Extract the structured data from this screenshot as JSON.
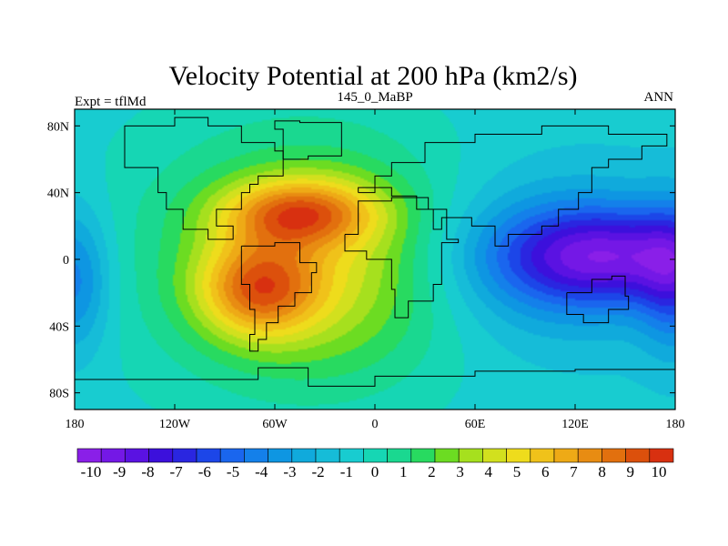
{
  "chart_data": {
    "type": "heatmap",
    "title": "Velocity Potential at 200 hPa (km2/s)",
    "left_label": "Expt = tflMd",
    "center_label": "145_0_MaBP",
    "right_label": "ANN",
    "xlim": [
      -180,
      180
    ],
    "ylim": [
      -90,
      90
    ],
    "x_ticks": [
      {
        "value": -180,
        "label": "180"
      },
      {
        "value": -120,
        "label": "120W"
      },
      {
        "value": -60,
        "label": "60W"
      },
      {
        "value": 0,
        "label": "0"
      },
      {
        "value": 60,
        "label": "60E"
      },
      {
        "value": 120,
        "label": "120E"
      },
      {
        "value": 180,
        "label": "180"
      }
    ],
    "y_ticks": [
      {
        "value": 80,
        "label": "80N"
      },
      {
        "value": 40,
        "label": "40N"
      },
      {
        "value": 0,
        "label": "0"
      },
      {
        "value": -40,
        "label": "40S"
      },
      {
        "value": -80,
        "label": "80S"
      }
    ],
    "colorbar": {
      "levels": [
        -10,
        -9,
        -8,
        -7,
        -6,
        -5,
        -4,
        -3,
        -2,
        -1,
        0,
        1,
        2,
        3,
        4,
        5,
        6,
        7,
        8,
        9,
        10
      ],
      "labels": [
        "-10",
        "-9",
        "-8",
        "-7",
        "-6",
        "-5",
        "-4",
        "-3",
        "-2",
        "-1",
        "0",
        "1",
        "2",
        "3",
        "4",
        "5",
        "6",
        "7",
        "8",
        "9",
        "10"
      ],
      "colors": [
        "#8a1fe8",
        "#7418e6",
        "#5a12e2",
        "#3c10dc",
        "#2a26e0",
        "#1c46e8",
        "#1a66ee",
        "#1480ea",
        "#0e96e2",
        "#10aadc",
        "#16bcd8",
        "#18ccd0",
        "#16d6b4",
        "#1ad890",
        "#28da60",
        "#6cdc22",
        "#a6e01e",
        "#d2e01e",
        "#eedc1c",
        "#f0c21a",
        "#eeaa16",
        "#e88c12",
        "#e2700e",
        "#dc500c",
        "#d83010"
      ]
    },
    "field_centers": [
      {
        "lon": -45,
        "lat": 28,
        "value": 9.5,
        "spread_lon": 32,
        "spread_lat": 14
      },
      {
        "lon": -70,
        "lat": -18,
        "value": 9.3,
        "spread_lon": 25,
        "spread_lat": 20
      },
      {
        "lon": -30,
        "lat": -5,
        "value": 5.5,
        "spread_lon": 55,
        "spread_lat": 45
      },
      {
        "lon": -55,
        "lat": 5,
        "value": 3.0,
        "spread_lon": 80,
        "spread_lat": 65
      },
      {
        "lon": 140,
        "lat": 2,
        "value": -9.8,
        "spread_lon": 45,
        "spread_lat": 20
      },
      {
        "lon": 100,
        "lat": 0,
        "value": -4.5,
        "spread_lon": 55,
        "spread_lat": 35
      },
      {
        "lon": -180,
        "lat": -12,
        "value": -5.5,
        "spread_lon": 15,
        "spread_lat": 30
      },
      {
        "lon": 180,
        "lat": -12,
        "value": -5.5,
        "spread_lon": 15,
        "spread_lat": 30
      }
    ]
  },
  "coastline_note": "continent outlines"
}
